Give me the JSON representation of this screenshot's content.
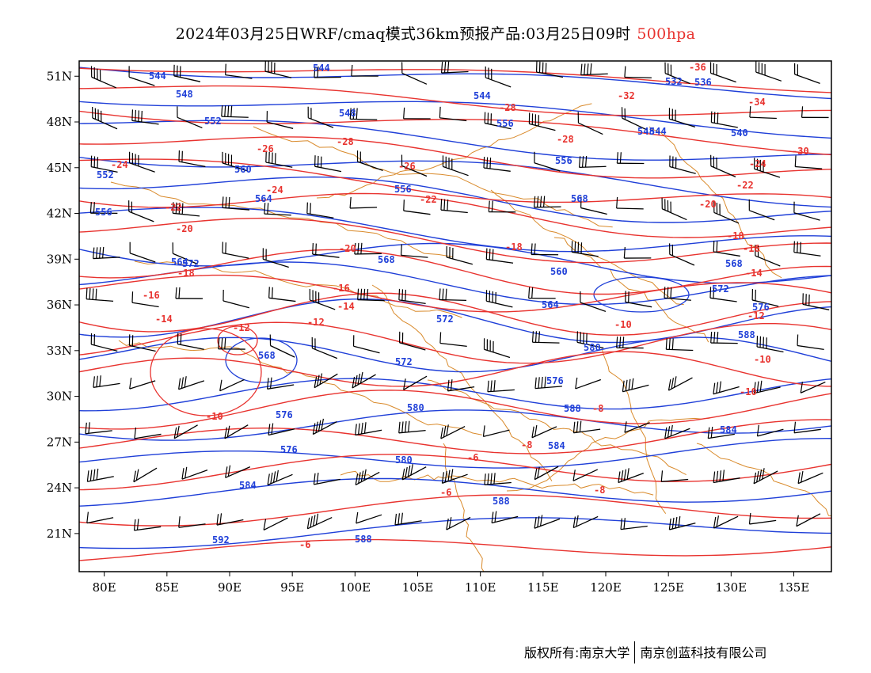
{
  "title": {
    "main": "2024年03月25日WRF/cmaq模式36km预报产品:03月25日09时",
    "level": "500hpa"
  },
  "axes": {
    "lat_labels": [
      "51N",
      "48N",
      "45N",
      "42N",
      "39N",
      "36N",
      "33N",
      "30N",
      "27N",
      "24N",
      "21N"
    ],
    "lon_labels": [
      "80E",
      "85E",
      "90E",
      "95E",
      "100E",
      "105E",
      "110E",
      "115E",
      "120E",
      "125E",
      "130E",
      "135E"
    ],
    "lon_range": [
      78,
      138
    ],
    "lat_range": [
      18.5,
      52
    ]
  },
  "colors": {
    "height_contour": "#1f3fd8",
    "temperature_contour": "#e8332f",
    "boundary": "#d98a2b",
    "wind_barb": "#000000"
  },
  "contour_labels": {
    "height": [
      "544",
      "544",
      "548",
      "544",
      "548",
      "552",
      "556",
      "548",
      "560",
      "556",
      "564",
      "568",
      "572",
      "568",
      "560",
      "564",
      "572",
      "568",
      "572",
      "576",
      "576",
      "580",
      "576",
      "580",
      "584",
      "588",
      "584",
      "588",
      "592",
      "536",
      "532",
      "544",
      "540",
      "556",
      "552",
      "556",
      "564",
      "568",
      "572",
      "576",
      "588",
      "584",
      "580",
      "588"
    ],
    "temperature": [
      "-36",
      "-32",
      "-34",
      "-28",
      "-28",
      "-30",
      "-28",
      "-26",
      "-26",
      "-24",
      "-24",
      "-22",
      "-22",
      "-20",
      "-20",
      "-18",
      "-18",
      "-16",
      "-16",
      "-14",
      "-14",
      "-12",
      "-12",
      "-10",
      "-10",
      "-8",
      "-8",
      "-6",
      "-6",
      "-24",
      "-22",
      "-20",
      "-18",
      "-16",
      "-14",
      "-12",
      "-10",
      "-10",
      "-8",
      "-6"
    ]
  },
  "footer": {
    "left": "版权所有:南京大学",
    "right": "南京创蓝科技有限公司"
  }
}
